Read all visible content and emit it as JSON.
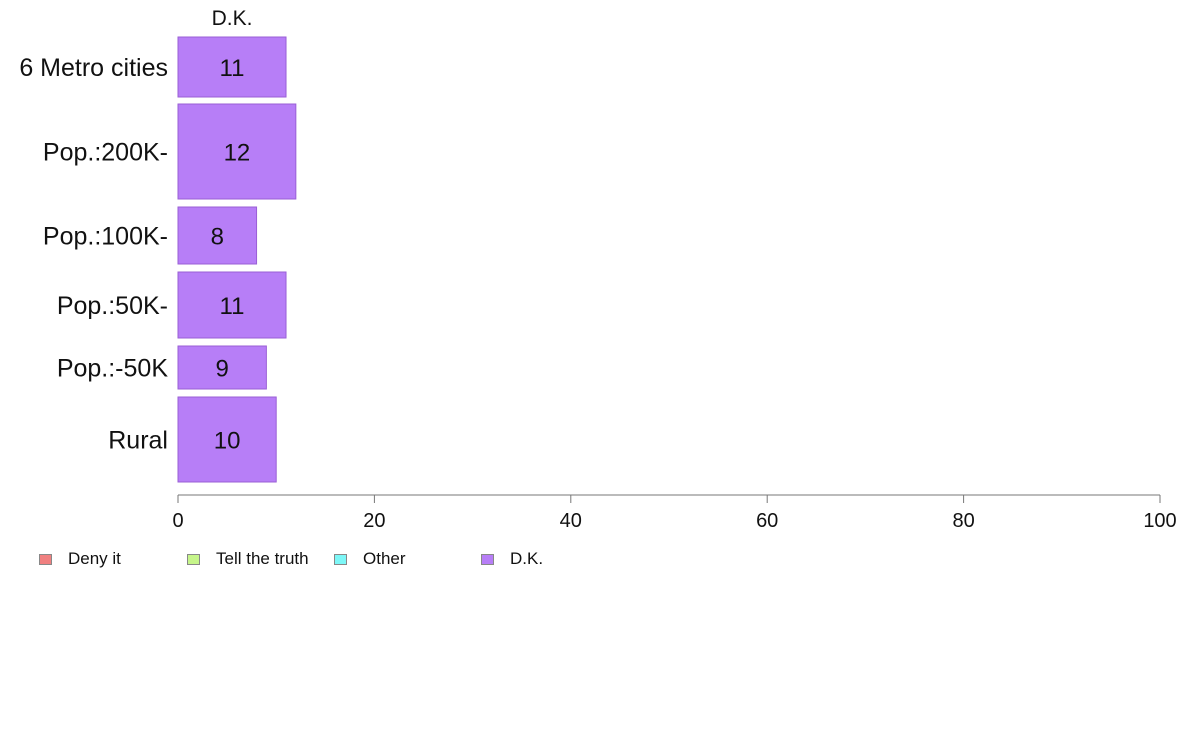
{
  "chart_data": {
    "type": "bar",
    "orientation": "horizontal",
    "panel_title": "D.K.",
    "categories": [
      "6 Metro cities",
      "Pop.:200K-",
      "Pop.:100K-",
      "Pop.:50K-",
      "Pop.:-50K",
      "Rural"
    ],
    "series": [
      {
        "name": "D.K.",
        "values": [
          11,
          12,
          8,
          11,
          9,
          10
        ]
      }
    ],
    "value_labels": [
      "11",
      "12",
      "8",
      "11",
      "9",
      "10"
    ],
    "xlim": [
      0,
      100
    ],
    "xticks": [
      0,
      20,
      40,
      60,
      80,
      100
    ],
    "grid": false,
    "legend_position": "bottom",
    "legend": [
      {
        "label": "Deny it",
        "color": "#f08080"
      },
      {
        "label": "Tell the truth",
        "color": "#c6f58a"
      },
      {
        "label": "Other",
        "color": "#7df7f7"
      },
      {
        "label": "D.K.",
        "color": "#b77ef7"
      }
    ],
    "bar_color": "#b77ef7",
    "bar_edge_color": "#9a5fd6"
  }
}
